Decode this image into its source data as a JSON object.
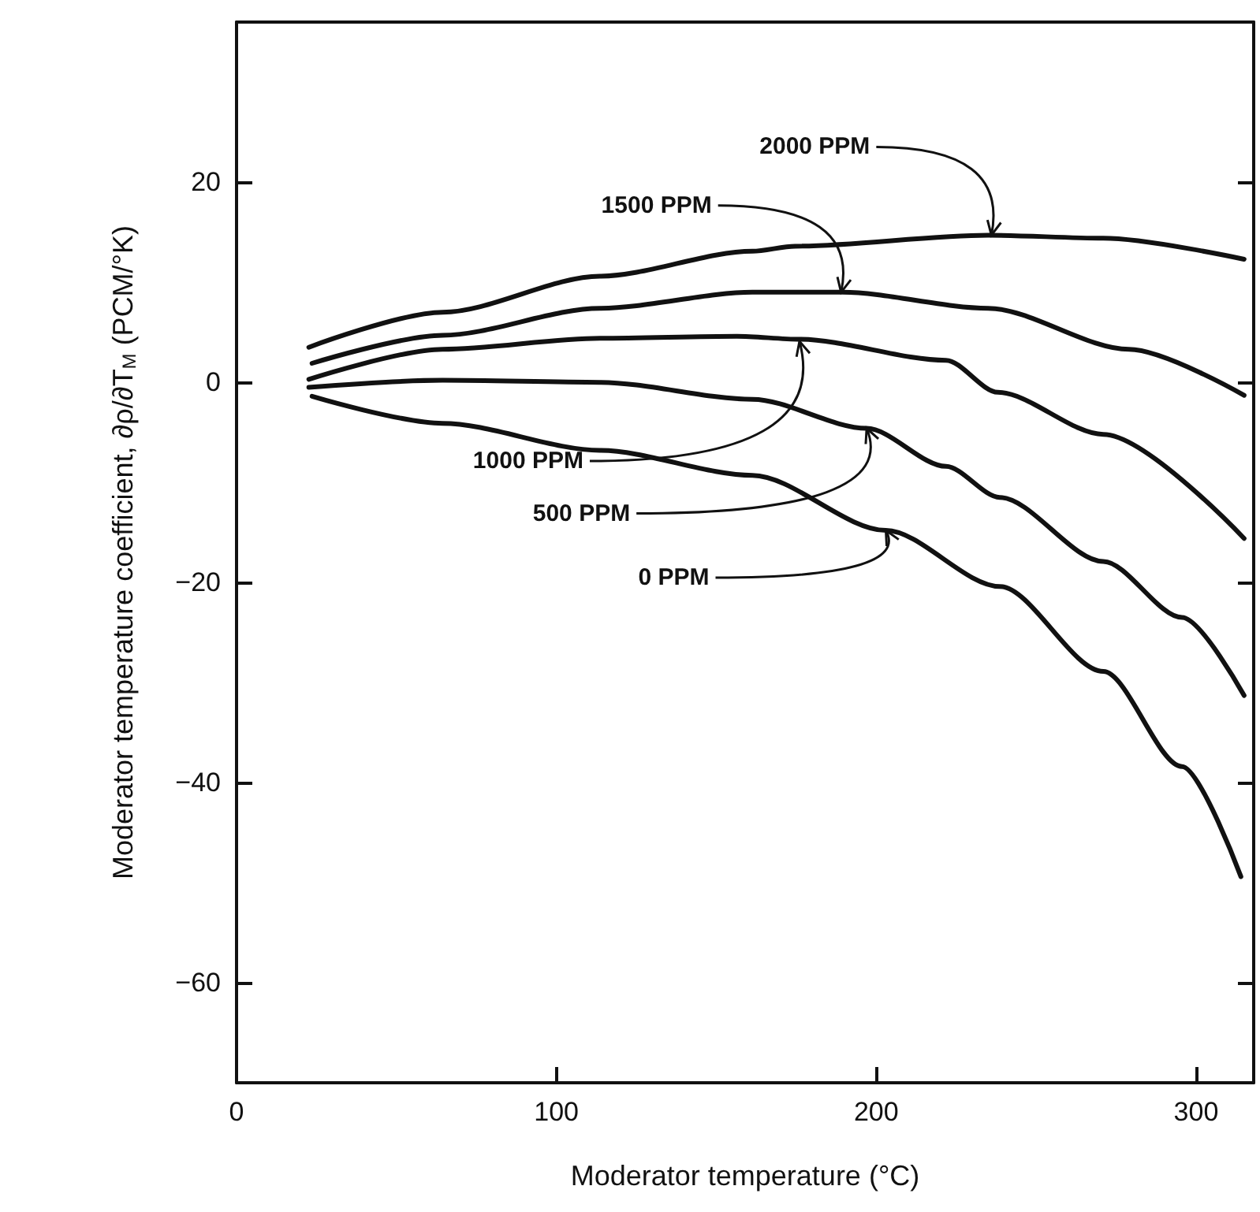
{
  "chart_data": {
    "type": "line",
    "xlabel": "Moderator temperature (°C)",
    "ylabel": "Moderator temperature coefficient, ∂ρ/∂T$_{M}$ (PCM/°K)",
    "xlim": [
      0,
      318
    ],
    "xticks": [
      0,
      100,
      200,
      300
    ],
    "ylim": [
      -70,
      36
    ],
    "yticks": [
      -60,
      -40,
      -20,
      0,
      20
    ],
    "grid": false,
    "marker": "none",
    "line_style": "solid",
    "series": [
      {
        "color": "#111111",
        "x": [
          22.6,
          64.4,
          113.6,
          161.3,
          174.6,
          235,
          271,
          315
        ],
        "values": [
          3.5,
          7.0,
          10.6,
          13.1,
          13.6,
          14.7,
          14.4,
          12.3
        ]
      },
      {
        "color": "#111111",
        "x": [
          23.6,
          64.4,
          113.6,
          161.3,
          189.4,
          235,
          279,
          315
        ],
        "values": [
          1.9,
          4.7,
          7.4,
          9.0,
          9.0,
          7.4,
          3.3,
          -1.3
        ]
      },
      {
        "color": "#111111",
        "x": [
          22.6,
          64.4,
          113.6,
          156.4,
          176,
          221.8,
          238,
          271,
          315
        ],
        "values": [
          0.3,
          3.3,
          4.4,
          4.6,
          4.3,
          2.2,
          -1.0,
          -5.2,
          -15.6
        ]
      },
      {
        "color": "#111111",
        "x": [
          22.6,
          64.4,
          113.6,
          161.3,
          197,
          221.8,
          238.6,
          271,
          295.6,
          315
        ],
        "values": [
          -0.5,
          0.2,
          0,
          -1.7,
          -4.6,
          -8.4,
          -11.5,
          -17.9,
          -23.5,
          -31.3
        ]
      },
      {
        "color": "#111111",
        "x": [
          23.6,
          64.4,
          113.6,
          161.3,
          203,
          238.6,
          271,
          295.6,
          314
        ],
        "values": [
          -1.4,
          -4.1,
          -6.8,
          -9.3,
          -14.8,
          -20.4,
          -28.9,
          -38.4,
          -49.4
        ]
      }
    ],
    "annotations": [
      {
        "text": "2000 PPM",
        "x": 236,
        "y": 14.7
      },
      {
        "text": "1500 PPM",
        "x": 189,
        "y": 9.0
      },
      {
        "text": "1000 PPM",
        "x": 176,
        "y": 4.1
      },
      {
        "text": "500 PPM",
        "x": 197,
        "y": -4.6
      },
      {
        "text": "0 PPM",
        "x": 203,
        "y": -14.8
      }
    ]
  }
}
